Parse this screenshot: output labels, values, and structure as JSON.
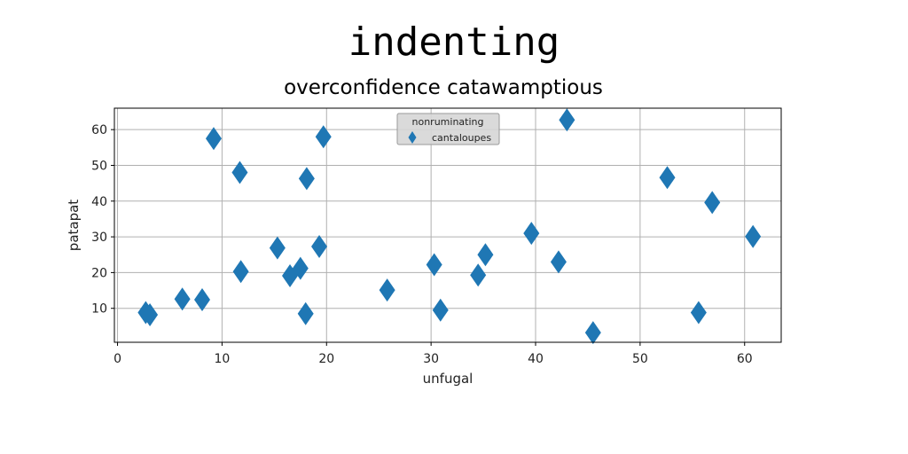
{
  "chart_data": {
    "type": "scatter",
    "title": "indenting",
    "subtitle": "overconfidence catawamptious",
    "xlabel": "unfugal",
    "ylabel": "patapat",
    "xlim": [
      -0.3,
      63.5
    ],
    "ylim": [
      0.5,
      66
    ],
    "xticks": [
      0,
      10,
      20,
      30,
      40,
      50,
      60
    ],
    "yticks": [
      10,
      20,
      30,
      40,
      50,
      60
    ],
    "grid": true,
    "legend": {
      "title": "nonruminating",
      "placement": "top-center"
    },
    "series": [
      {
        "name": "cantaloupes",
        "color": "#1f77b4",
        "marker": "diamond",
        "x": [
          2.7,
          3.1,
          6.2,
          8.1,
          9.2,
          11.7,
          11.8,
          15.3,
          16.5,
          17.5,
          18.0,
          18.1,
          19.3,
          19.7,
          25.8,
          30.3,
          30.9,
          34.5,
          35.2,
          39.6,
          42.2,
          43.0,
          45.5,
          52.6,
          55.6,
          56.9,
          60.8
        ],
        "y": [
          8.8,
          8.2,
          12.6,
          12.4,
          57.5,
          48.0,
          20.3,
          26.9,
          19.1,
          21.2,
          8.5,
          46.3,
          27.3,
          58.0,
          15.1,
          22.2,
          9.5,
          19.3,
          25.0,
          31.0,
          23.0,
          62.7,
          3.2,
          46.6,
          8.8,
          39.6,
          30.1
        ]
      }
    ]
  }
}
